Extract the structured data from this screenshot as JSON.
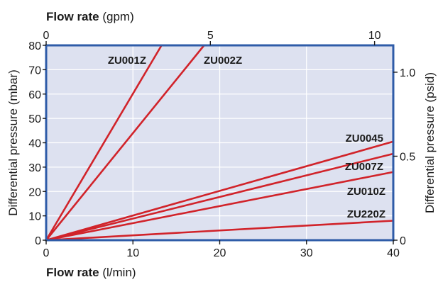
{
  "chart_data": {
    "type": "line",
    "xaxis": {
      "title": "Flow rate",
      "unit": "(l/min)",
      "range": [
        0,
        40
      ],
      "ticks": [
        0,
        10,
        20,
        30,
        40
      ],
      "tick_labels": [
        "0",
        "10",
        "20",
        "30",
        "40"
      ]
    },
    "x2axis": {
      "title": "Flow rate",
      "unit": "(gpm)",
      "range": [
        0,
        10.57
      ],
      "ticks": [
        0,
        5,
        10
      ],
      "tick_labels": [
        "0",
        "5",
        "10"
      ]
    },
    "yaxis": {
      "title": "Differential pressure (mbar)",
      "range": [
        0,
        80
      ],
      "ticks": [
        0,
        10,
        20,
        30,
        40,
        50,
        60,
        70,
        80
      ],
      "tick_labels": [
        "0",
        "10",
        "20",
        "30",
        "40",
        "50",
        "60",
        "70",
        "80"
      ]
    },
    "y2axis": {
      "title": "Differential pressure (psid)",
      "range": [
        0,
        1.16
      ],
      "ticks": [
        0,
        0.5,
        1.0
      ],
      "tick_labels": [
        "0",
        "0.5",
        "1.0"
      ]
    },
    "grid": true,
    "series": [
      {
        "name": "ZU001Z",
        "x": [
          0,
          13.3
        ],
        "y": [
          0,
          80
        ]
      },
      {
        "name": "ZU002Z",
        "x": [
          0,
          18.2
        ],
        "y": [
          0,
          80
        ]
      },
      {
        "name": "ZU0045",
        "x": [
          0,
          40
        ],
        "y": [
          0,
          40.5
        ]
      },
      {
        "name": "ZU007Z",
        "x": [
          0,
          40
        ],
        "y": [
          0,
          35.5
        ]
      },
      {
        "name": "ZU010Z",
        "x": [
          0,
          40
        ],
        "y": [
          0,
          28
        ]
      },
      {
        "name": "ZU220Z",
        "x": [
          0,
          40
        ],
        "y": [
          0,
          8
        ]
      }
    ]
  },
  "colors": {
    "plot_background": "#dde1f0",
    "frame": "#2f5ca8",
    "series": "#d1232a",
    "text": "#1a1a1a"
  }
}
